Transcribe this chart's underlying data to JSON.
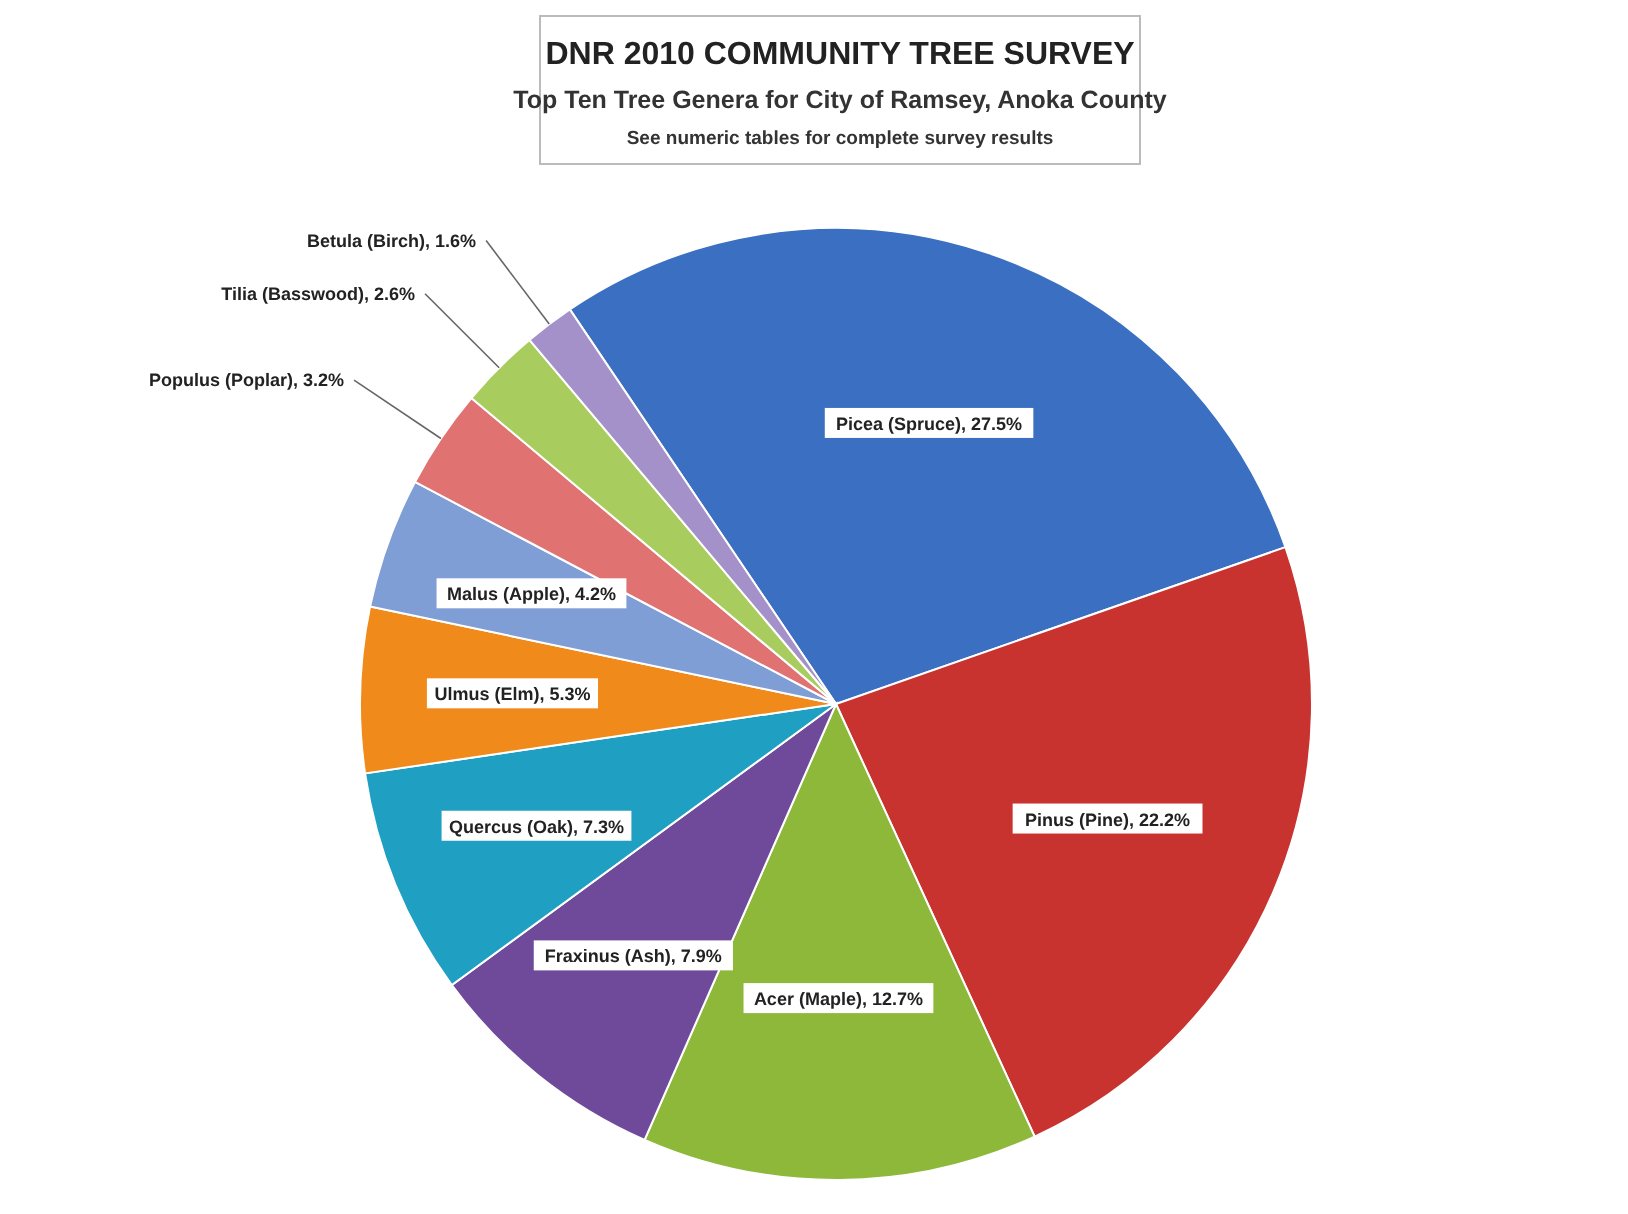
{
  "chart_data": {
    "type": "pie",
    "title": "DNR 2010 COMMUNITY TREE SURVEY",
    "subtitle": "Top Ten Tree Genera for City of Ramsey, Anoka County",
    "annotations": [
      "See numeric tables for complete survey results"
    ],
    "categories": [
      "Picea (Spruce)",
      "Pinus (Pine)",
      "Acer (Maple)",
      "Fraxinus (Ash)",
      "Quercus (Oak)",
      "Ulmus (Elm)",
      "Malus (Apple)",
      "Populus (Poplar)",
      "Tilia (Basswood)",
      "Betula (Birch)"
    ],
    "values": [
      27.5,
      22.2,
      12.7,
      7.9,
      7.3,
      5.3,
      4.2,
      3.2,
      2.6,
      1.6
    ],
    "value_labels": [
      "27.5%",
      "22.2%",
      "12.7%",
      "7.9%",
      "7.3%",
      "5.3%",
      "4.2%",
      "3.2%",
      "2.6%",
      "1.6%"
    ],
    "colors": [
      "#3b6fc2",
      "#c8332f",
      "#8db83a",
      "#6f4a9b",
      "#1f9fc2",
      "#f08a1a",
      "#7f9ed6",
      "#e07272",
      "#a9cc5e",
      "#a491c9"
    ]
  }
}
